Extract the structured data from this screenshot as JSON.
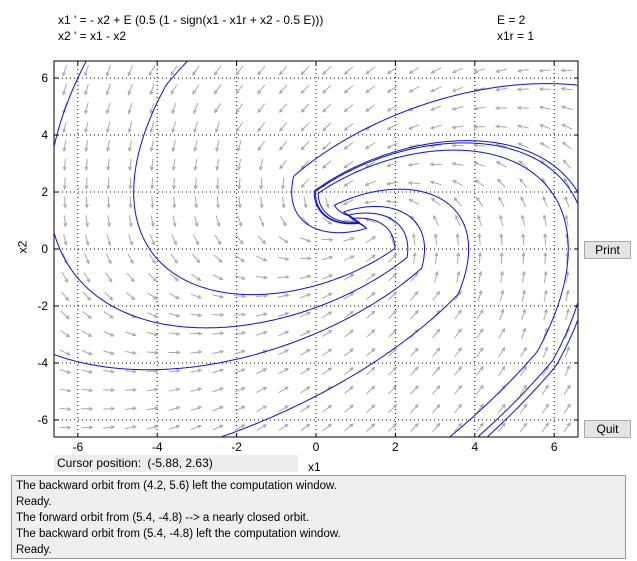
{
  "equations": {
    "line1": "x1 ' = - x2 + E (0.5 (1 - sign(x1 - x1r + x2 - 0.5 E)))",
    "line2": "x2 ' = x1 - x2"
  },
  "params": {
    "E": "E = 2",
    "x1r": "x1r = 1"
  },
  "axes": {
    "xlabel": "x1",
    "ylabel": "x2",
    "xticks": [
      "-6",
      "-4",
      "-2",
      "0",
      "2",
      "4",
      "6"
    ],
    "yticks": [
      "6",
      "4",
      "2",
      "0",
      "-2",
      "-4",
      "-6"
    ],
    "xlim": [
      -6.6,
      6.6
    ],
    "ylim": [
      -6.6,
      6.6
    ],
    "grid": "dotted"
  },
  "buttons": {
    "print": "Print",
    "quit": "Quit"
  },
  "cursor": {
    "label": "Cursor position:",
    "value": "(-5.88, 2.63)"
  },
  "messages": [
    "The backward orbit from (4.2, 5.6) left the computation window.",
    "Ready.",
    "The forward orbit from (5.4, -4.8) --> a nearly closed orbit.",
    "The backward orbit from (5.4, -4.8) left the computation window.",
    "Ready."
  ],
  "colors": {
    "orbit": "#1010c8",
    "field_arrows": "#a8a8a8",
    "grid": "#000000"
  },
  "chart_data": {
    "type": "phase-portrait",
    "system": "x1' = -x2 + E*0.5*(1 - sign(x1 - x1r + x2 - 0.5E)), x2' = x1 - x2",
    "E": 2,
    "x1r": 1,
    "orbits": [
      {
        "direction": "backward",
        "start": [
          4.2,
          5.6
        ]
      },
      {
        "direction": "forward",
        "start": [
          5.4,
          -4.8
        ]
      },
      {
        "direction": "backward",
        "start": [
          5.4,
          -4.8
        ]
      }
    ]
  }
}
